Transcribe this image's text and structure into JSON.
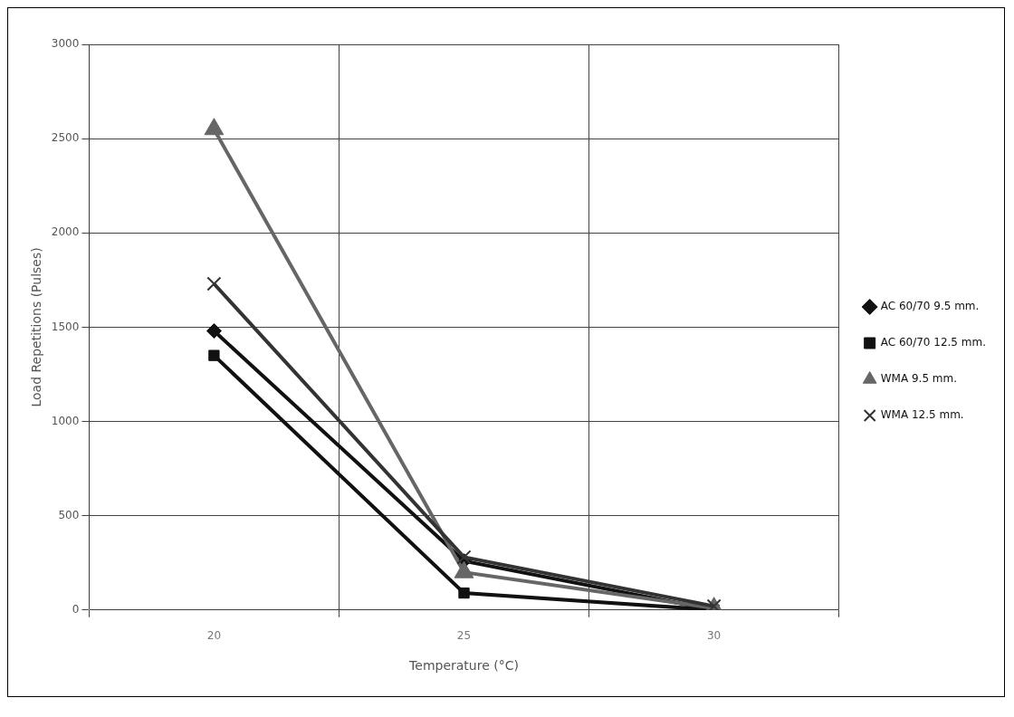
{
  "chart_data": {
    "type": "line",
    "xlabel": "Temperature (°C)",
    "ylabel": "Load Repetitions (Pulses)",
    "categories": [
      "20",
      "25",
      "30"
    ],
    "series": [
      {
        "name": "AC 60/70 9.5 mm.",
        "color": "#111111",
        "marker": "diamond",
        "values": [
          1480,
          260,
          0
        ]
      },
      {
        "name": "AC 60/70 12.5 mm.",
        "color": "#111111",
        "marker": "square",
        "values": [
          1350,
          90,
          0
        ]
      },
      {
        "name": "WMA 9.5 mm.",
        "color": "#666666",
        "marker": "triangle",
        "values": [
          2550,
          200,
          10
        ]
      },
      {
        "name": "WMA 12.5 mm.",
        "color": "#333333",
        "marker": "cross",
        "values": [
          1730,
          280,
          20
        ]
      }
    ],
    "ylim": [
      0,
      3000
    ],
    "yticks": [
      0,
      500,
      1000,
      1500,
      2000,
      2500,
      3000
    ],
    "grid": true,
    "legend": "right",
    "line_style": "solid"
  }
}
